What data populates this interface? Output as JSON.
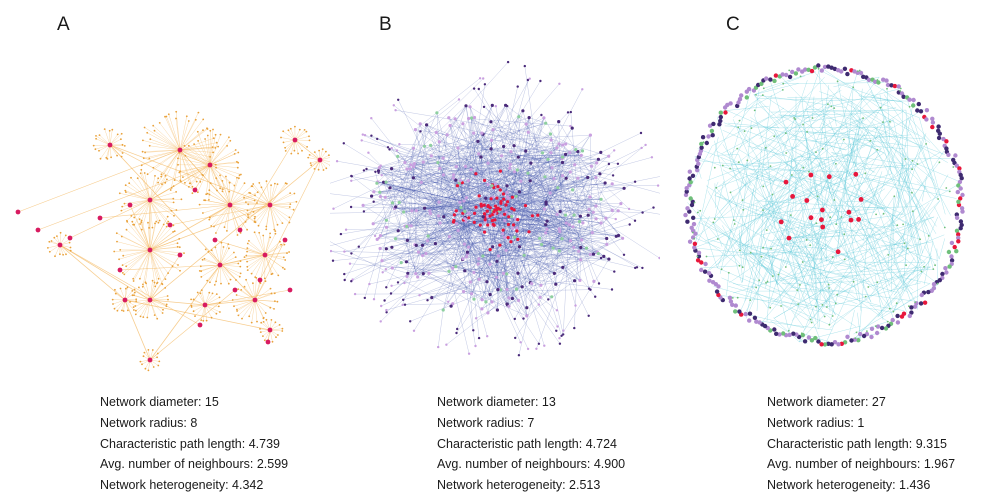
{
  "panels": [
    {
      "label": "A",
      "stats": [
        {
          "name": "Network diameter",
          "value": "15"
        },
        {
          "name": "Network radius",
          "value": "8"
        },
        {
          "name": "Characteristic path length",
          "value": "4.739"
        },
        {
          "name": "Avg. number of neighbours",
          "value": "2.599"
        },
        {
          "name": "Network heterogeneity",
          "value": "4.342"
        }
      ],
      "colors": {
        "edge": "#f4b860",
        "leaf": "#e9a23b",
        "hub": "#d81b60"
      }
    },
    {
      "label": "B",
      "stats": [
        {
          "name": "Network diameter",
          "value": "13"
        },
        {
          "name": "Network radius",
          "value": "7"
        },
        {
          "name": "Characteristic path length",
          "value": "4.724"
        },
        {
          "name": "Avg. number of neighbours",
          "value": "4.900"
        },
        {
          "name": "Network heterogeneity",
          "value": "2.513"
        }
      ],
      "colors": {
        "edge": "#3b4fa8",
        "core": "#e8173c",
        "node_a": "#c9a0e0",
        "node_b": "#4a2a7a",
        "node_c": "#8fd0a0"
      }
    },
    {
      "label": "C",
      "stats": [
        {
          "name": "Network diameter",
          "value": "27"
        },
        {
          "name": "Network radius",
          "value": "1"
        },
        {
          "name": "Characteristic path length",
          "value": "9.315"
        },
        {
          "name": "Avg. number of neighbours",
          "value": "1.967"
        },
        {
          "name": "Network heterogeneity",
          "value": "1.436"
        }
      ],
      "colors": {
        "edge": "#5cc8d8",
        "core": "#e8173c",
        "node_a": "#b08ad0",
        "node_b": "#3e2a70",
        "node_c": "#6fbf7a"
      }
    }
  ]
}
